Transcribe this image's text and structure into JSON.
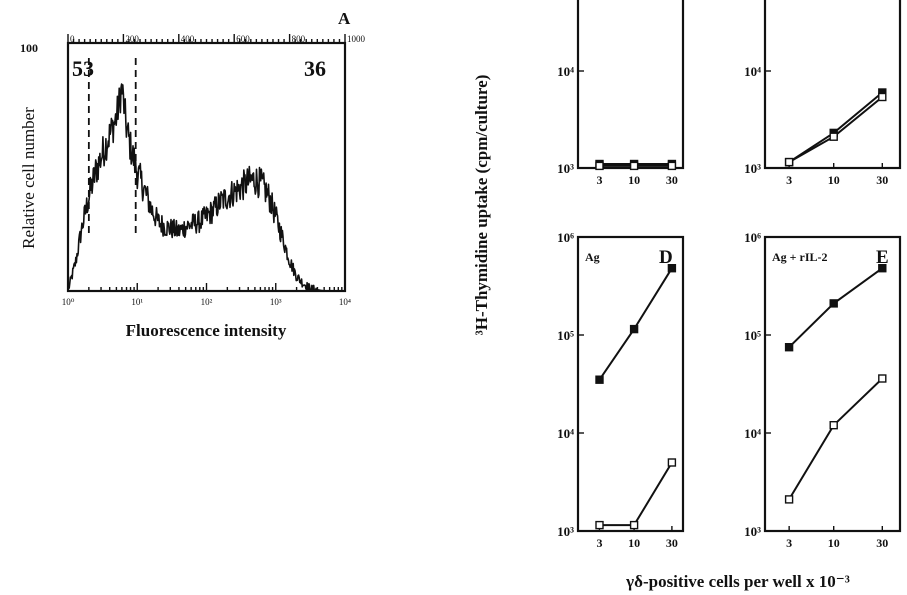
{
  "figure": {
    "histogram": {
      "panel_letter": "A",
      "y_tick_max": "100",
      "top_scale_labels": [
        "0",
        "200",
        "400",
        "600",
        "800",
        "1000"
      ],
      "left_count": "53",
      "right_count": "36",
      "x_tick_labels": [
        "10⁰",
        "10¹",
        "10²",
        "10³",
        "10⁴"
      ],
      "xlabel": "Fluorescence intensity",
      "ylabel": "Relative cell number"
    },
    "proliferation": {
      "ylabel": "³H-Thymidine uptake (cpm/culture)",
      "xlabel": "γδ-positive cells per well x 10⁻³",
      "panels": {
        "top_left": {
          "letter": "",
          "condition": ""
        },
        "top_right": {
          "letter": "",
          "condition": ""
        },
        "D": {
          "letter": "D",
          "condition": "Ag"
        },
        "E": {
          "letter": "E",
          "condition": "Ag + rIL-2"
        }
      }
    }
  },
  "chart_data": [
    {
      "type": "area",
      "id": "A",
      "title": "",
      "xlabel": "Fluorescence intensity",
      "ylabel": "Relative cell number",
      "x_scale": "log",
      "xlim": [
        1,
        10000
      ],
      "ylim": [
        0,
        100
      ],
      "x_ticks": [
        "10⁰",
        "10¹",
        "10²",
        "10³",
        "10⁴"
      ],
      "secondary_x_ticks": [
        "0",
        "200",
        "400",
        "600",
        "800",
        "1000"
      ],
      "gates": [
        2.0,
        9.5
      ],
      "annotations": [
        "53",
        "36"
      ],
      "profile": [
        {
          "x": 1.0,
          "y": 0
        },
        {
          "x": 1.3,
          "y": 12
        },
        {
          "x": 1.6,
          "y": 26
        },
        {
          "x": 2.0,
          "y": 38
        },
        {
          "x": 2.5,
          "y": 48
        },
        {
          "x": 3.2,
          "y": 56
        },
        {
          "x": 4.0,
          "y": 63
        },
        {
          "x": 5.0,
          "y": 70
        },
        {
          "x": 6.0,
          "y": 82
        },
        {
          "x": 7.0,
          "y": 66
        },
        {
          "x": 8.0,
          "y": 58
        },
        {
          "x": 10.0,
          "y": 48
        },
        {
          "x": 13.0,
          "y": 40
        },
        {
          "x": 16.0,
          "y": 33
        },
        {
          "x": 20.0,
          "y": 28
        },
        {
          "x": 25.0,
          "y": 26
        },
        {
          "x": 32.0,
          "y": 25
        },
        {
          "x": 40.0,
          "y": 24
        },
        {
          "x": 50.0,
          "y": 26
        },
        {
          "x": 63.0,
          "y": 27
        },
        {
          "x": 80.0,
          "y": 28
        },
        {
          "x": 100.0,
          "y": 30
        },
        {
          "x": 130.0,
          "y": 33
        },
        {
          "x": 160.0,
          "y": 36
        },
        {
          "x": 200.0,
          "y": 38
        },
        {
          "x": 250.0,
          "y": 40
        },
        {
          "x": 320.0,
          "y": 42
        },
        {
          "x": 400.0,
          "y": 44
        },
        {
          "x": 500.0,
          "y": 45
        },
        {
          "x": 630.0,
          "y": 43
        },
        {
          "x": 800.0,
          "y": 38
        },
        {
          "x": 1000.0,
          "y": 30
        },
        {
          "x": 1300.0,
          "y": 20
        },
        {
          "x": 1600.0,
          "y": 12
        },
        {
          "x": 2000.0,
          "y": 6
        },
        {
          "x": 2500.0,
          "y": 3
        },
        {
          "x": 3200.0,
          "y": 1
        },
        {
          "x": 5000.0,
          "y": 0
        },
        {
          "x": 10000.0,
          "y": 0
        }
      ]
    },
    {
      "type": "line",
      "id": "top-left",
      "title": "",
      "y_scale": "log",
      "ylim": [
        1000,
        1000000
      ],
      "y_ticks": [
        "10³",
        "10⁴"
      ],
      "categories": [
        "3",
        "10",
        "30"
      ],
      "series": [
        {
          "marker": "filled",
          "values": [
            1100,
            1100,
            1100
          ]
        },
        {
          "marker": "open",
          "values": [
            1050,
            1050,
            1050
          ]
        }
      ]
    },
    {
      "type": "line",
      "id": "top-right",
      "title": "",
      "y_scale": "log",
      "ylim": [
        1000,
        1000000
      ],
      "y_ticks": [
        "10³",
        "10⁴"
      ],
      "categories": [
        "3",
        "10",
        "30"
      ],
      "series": [
        {
          "marker": "filled",
          "values": [
            1150,
            2300,
            6000
          ]
        },
        {
          "marker": "open",
          "values": [
            1150,
            2100,
            5400
          ]
        }
      ]
    },
    {
      "type": "line",
      "id": "D",
      "title": "",
      "y_scale": "log",
      "ylim": [
        1000,
        1000000
      ],
      "y_ticks": [
        "10³",
        "10⁴",
        "10⁵",
        "10⁶"
      ],
      "categories": [
        "3",
        "10",
        "30"
      ],
      "xlabel": "γδ-positive cells per well x 10⁻³",
      "ylabel": "³H-Thymidine uptake (cpm/culture)",
      "series": [
        {
          "marker": "filled",
          "values": [
            35000,
            115000,
            480000
          ]
        },
        {
          "marker": "open",
          "values": [
            1150,
            1150,
            5000
          ]
        }
      ]
    },
    {
      "type": "line",
      "id": "E",
      "title": "",
      "y_scale": "log",
      "ylim": [
        1000,
        1000000
      ],
      "y_ticks": [
        "10³",
        "10⁴",
        "10⁵",
        "10⁶"
      ],
      "categories": [
        "3",
        "10",
        "30"
      ],
      "series": [
        {
          "marker": "filled",
          "values": [
            75000,
            210000,
            480000
          ]
        },
        {
          "marker": "open",
          "values": [
            2100,
            12000,
            36000
          ]
        }
      ]
    }
  ]
}
